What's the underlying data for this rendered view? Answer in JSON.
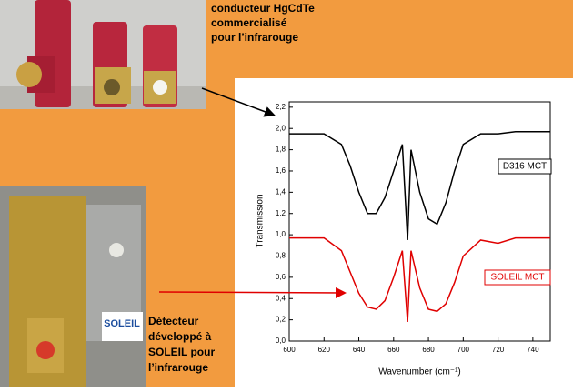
{
  "captions": {
    "top": [
      "conducteur  HgCdTe",
      "commercialisé",
      "pour l’infrarouge"
    ],
    "bottom": [
      "Détecteur",
      "développé à",
      "SOLEIL pour",
      "l’infrarouge"
    ]
  },
  "logo": {
    "text": "SOLEIL"
  },
  "chart_data": {
    "type": "line",
    "ylabel": "Transmission",
    "xlabel": "Wavenumber (cm⁻¹)",
    "x": [
      600,
      610,
      620,
      630,
      635,
      640,
      645,
      650,
      655,
      660,
      665,
      668,
      670,
      675,
      680,
      685,
      690,
      695,
      700,
      710,
      720,
      730,
      740,
      750
    ],
    "series": [
      {
        "name": "D316 MCT",
        "color": "#000000",
        "values": [
          1.95,
          1.95,
          1.95,
          1.85,
          1.65,
          1.4,
          1.2,
          1.2,
          1.35,
          1.6,
          1.85,
          0.95,
          1.8,
          1.4,
          1.15,
          1.1,
          1.3,
          1.6,
          1.85,
          1.95,
          1.95,
          1.97,
          1.97,
          1.97
        ]
      },
      {
        "name": "SOLEIL MCT",
        "color": "#e00000",
        "values": [
          0.97,
          0.97,
          0.97,
          0.85,
          0.65,
          0.45,
          0.32,
          0.3,
          0.38,
          0.6,
          0.85,
          0.18,
          0.85,
          0.5,
          0.3,
          0.28,
          0.35,
          0.55,
          0.8,
          0.95,
          0.92,
          0.97,
          0.97,
          0.97
        ]
      }
    ],
    "xlim": [
      600,
      750
    ],
    "xticks": [
      600,
      620,
      640,
      660,
      680,
      700,
      720,
      740
    ],
    "ylim": [
      0,
      2.25
    ],
    "yticks": [
      {
        "value": 0,
        "label": "0,0"
      },
      {
        "value": 0.2,
        "label": "0,2"
      },
      {
        "value": 0.4,
        "label": "0,4"
      },
      {
        "value": 0.6,
        "label": "0,6"
      },
      {
        "value": 0.8,
        "label": "0,8"
      },
      {
        "value": 1.0,
        "label": "1,0"
      },
      {
        "value": 1.2,
        "label": "1,2"
      },
      {
        "value": 1.4,
        "label": "1,4"
      },
      {
        "value": 1.6,
        "label": "1,6"
      },
      {
        "value": 1.8,
        "label": "1,8"
      },
      {
        "value": 2.0,
        "label": "2,0"
      },
      {
        "value": 2.2,
        "label": "2,2"
      }
    ]
  }
}
